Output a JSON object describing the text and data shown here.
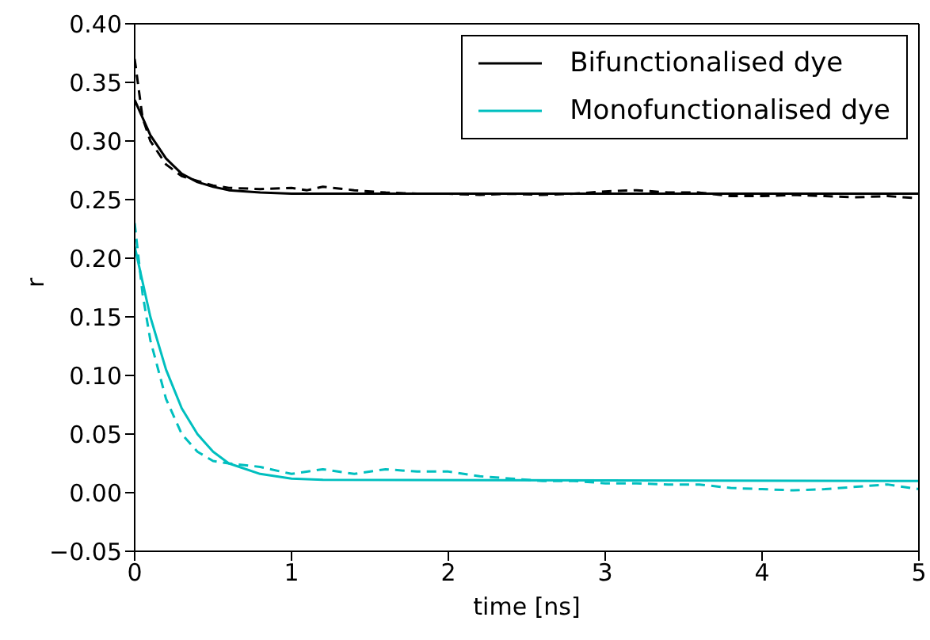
{
  "chart_data": {
    "type": "line",
    "xlabel": "time [ns]",
    "ylabel": "r",
    "xlim": [
      0,
      5
    ],
    "xticks": [
      0,
      1,
      2,
      3,
      4,
      5
    ],
    "ylim": [
      -0.05,
      0.4
    ],
    "yticks": [
      {
        "value": -0.05,
        "label": "−0.05"
      },
      {
        "value": 0,
        "label": "0.00"
      },
      {
        "value": 0.05,
        "label": "0.05"
      },
      {
        "value": 0.1,
        "label": "0.10"
      },
      {
        "value": 0.15,
        "label": "0.15"
      },
      {
        "value": 0.2,
        "label": "0.20"
      },
      {
        "value": 0.25,
        "label": "0.25"
      },
      {
        "value": 0.3,
        "label": "0.30"
      },
      {
        "value": 0.35,
        "label": "0.35"
      },
      {
        "value": 0.4,
        "label": "0.40"
      }
    ],
    "legend": "top right",
    "marker": "none",
    "series": [
      {
        "name": "Bifunctionalised dye",
        "color": "#000000",
        "line_style": "solid",
        "x": [
          0,
          0.1,
          0.2,
          0.3,
          0.4,
          0.5,
          0.6,
          0.8,
          1,
          5
        ],
        "values": [
          0.335,
          0.305,
          0.285,
          0.272,
          0.265,
          0.261,
          0.258,
          0.256,
          0.255,
          0.255
        ]
      },
      {
        "name": "Monofunctionalised dye",
        "color": "#00bfbf",
        "line_style": "solid",
        "x": [
          0,
          0.1,
          0.2,
          0.3,
          0.4,
          0.5,
          0.6,
          0.8,
          1,
          1.2,
          5
        ],
        "values": [
          0.21,
          0.15,
          0.105,
          0.072,
          0.05,
          0.035,
          0.025,
          0.016,
          0.012,
          0.011,
          0.01
        ]
      },
      {
        "color": "#000000",
        "line_style": "dashed",
        "x": [
          0,
          0.05,
          0.1,
          0.2,
          0.3,
          0.4,
          0.5,
          0.6,
          0.8,
          1,
          1.1,
          1.2,
          1.4,
          1.6,
          1.8,
          2,
          2.2,
          2.4,
          2.6,
          2.8,
          3,
          3.2,
          3.4,
          3.6,
          3.8,
          4,
          4.2,
          4.4,
          4.6,
          4.8,
          5
        ],
        "values": [
          0.37,
          0.32,
          0.3,
          0.28,
          0.27,
          0.266,
          0.262,
          0.26,
          0.259,
          0.26,
          0.258,
          0.261,
          0.258,
          0.256,
          0.255,
          0.255,
          0.254,
          0.255,
          0.254,
          0.255,
          0.257,
          0.258,
          0.256,
          0.256,
          0.253,
          0.253,
          0.254,
          0.253,
          0.252,
          0.253,
          0.251
        ]
      },
      {
        "color": "#00bfbf",
        "line_style": "dashed",
        "x": [
          0,
          0.05,
          0.1,
          0.2,
          0.3,
          0.4,
          0.5,
          0.6,
          0.8,
          1,
          1.2,
          1.4,
          1.6,
          1.8,
          2,
          2.2,
          2.4,
          2.6,
          2.8,
          3,
          3.2,
          3.4,
          3.6,
          3.8,
          4,
          4.2,
          4.4,
          4.6,
          4.8,
          5
        ],
        "values": [
          0.23,
          0.17,
          0.13,
          0.08,
          0.05,
          0.035,
          0.027,
          0.025,
          0.022,
          0.016,
          0.02,
          0.016,
          0.02,
          0.018,
          0.018,
          0.014,
          0.012,
          0.01,
          0.01,
          0.008,
          0.008,
          0.007,
          0.007,
          0.004,
          0.003,
          0.002,
          0.003,
          0.005,
          0.007,
          0.003
        ]
      }
    ]
  }
}
